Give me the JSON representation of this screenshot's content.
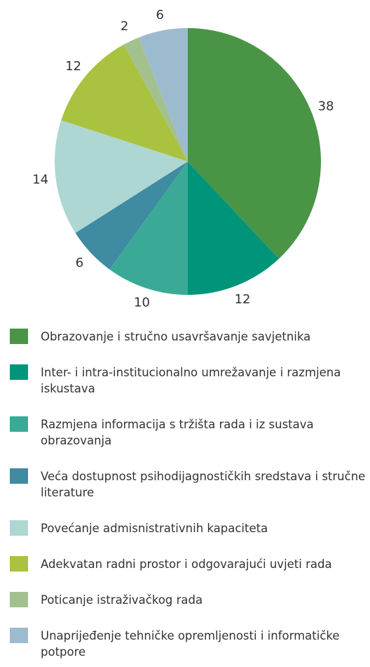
{
  "chart_data": {
    "type": "pie",
    "categories": [
      "Obrazovanje i stručno usavršavanje savjetnika",
      "Inter- i intra-institucionalno umrežavanje i razmjena iskustava",
      "Razmjena informacija s tržišta rada i iz sustava obrazovanja",
      "Veća dostupnost psihodijagnostičkih sredstava i stručne literature",
      "Povećanje admisnistrativnih kapaciteta",
      "Adekvatan radni prostor i odgovarajući uvjeti rada",
      "Poticanje istraživačkog rada",
      "Unaprijeđenje tehničke opremljenosti i informatičke potpore"
    ],
    "values": [
      38,
      12,
      10,
      6,
      14,
      12,
      2,
      6
    ],
    "colors": [
      "#4a9446",
      "#00957a",
      "#3aaa97",
      "#3f8ba1",
      "#aed6d2",
      "#a9c23f",
      "#a3c08f",
      "#9dbbcf"
    ]
  }
}
